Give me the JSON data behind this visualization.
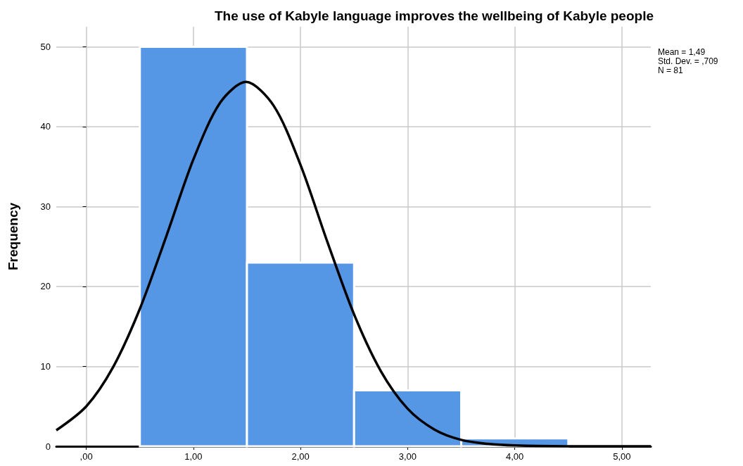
{
  "chart_data": {
    "type": "histogram",
    "title": "The use of Kabyle language improves the wellbeing of Kabyle people",
    "ylabel": "Frequency",
    "bins": [
      0.5,
      1.5,
      2.5,
      3.5,
      4.5
    ],
    "values": [
      50,
      23,
      7,
      1
    ],
    "color": "#5596e5",
    "series": [
      {
        "type": "line",
        "color": "#000000",
        "x": [
          -0.28,
          0,
          0.25,
          0.5,
          0.75,
          1.0,
          1.25,
          1.49,
          1.75,
          2.0,
          2.25,
          2.5,
          2.75,
          3.0,
          3.25,
          3.5,
          3.75,
          4.0,
          4.5,
          5.0,
          5.27
        ],
        "values": [
          2.0,
          5.0,
          9.9,
          17.2,
          26.4,
          35.9,
          43.0,
          45.6,
          42.6,
          35.2,
          25.6,
          16.5,
          9.4,
          4.7,
          2.1,
          0.8,
          0.3,
          0.1,
          0,
          0,
          0
        ]
      }
    ],
    "xlim": [
      -0.28,
      5.27
    ],
    "xticks": [
      {
        "value": 0,
        "label": ",00"
      },
      {
        "value": 1,
        "label": "1,00"
      },
      {
        "value": 2,
        "label": "2,00"
      },
      {
        "value": 3,
        "label": "3,00"
      },
      {
        "value": 4,
        "label": "4,00"
      },
      {
        "value": 5,
        "label": "5,00"
      }
    ],
    "ylim": [
      0,
      52.5
    ],
    "yticks": [
      0,
      10,
      20,
      30,
      40,
      50
    ],
    "grid": true,
    "marker": "none",
    "annotations": [
      "Mean = 1,49",
      "Std. Dev. = ,709",
      "N = 81"
    ]
  }
}
